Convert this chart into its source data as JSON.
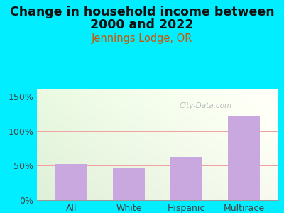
{
  "title_line1": "Change in household income between",
  "title_line2": "2000 and 2022",
  "subtitle": "Jennings Lodge, OR",
  "categories": [
    "All",
    "White",
    "Hispanic",
    "Multirace"
  ],
  "values": [
    52,
    47,
    63,
    122
  ],
  "bar_color": "#c9a8e0",
  "title_fontsize": 12.5,
  "subtitle_fontsize": 10.5,
  "subtitle_color": "#cc5500",
  "tick_label_fontsize": 9,
  "ytick_label_fontsize": 9,
  "ylim": [
    0,
    160
  ],
  "yticks": [
    0,
    50,
    100,
    150
  ],
  "ytick_labels": [
    "0%",
    "50%",
    "100%",
    "150%"
  ],
  "bg_outer": "#00eeff",
  "watermark": "City-Data.com",
  "grid_color": "#f0a0a0",
  "grid_linewidth": 0.7,
  "tick_color": "#444444"
}
